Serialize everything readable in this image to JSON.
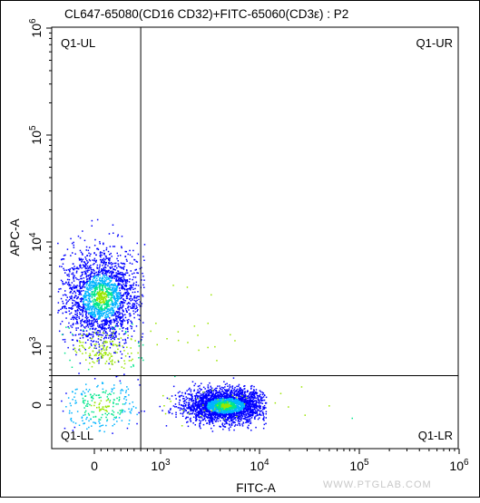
{
  "chart_data": {
    "type": "scatter",
    "title": "CL647-65080(CD16 CD32)+FITC-65060(CD3ε) : P2",
    "xlabel": "FITC-A",
    "ylabel": "APC-A",
    "x_scale": "biexponential",
    "y_scale": "biexponential",
    "xlim": [
      -600,
      1000000
    ],
    "ylim": [
      -600,
      1000000
    ],
    "x_ticks": [
      {
        "value": 0,
        "label": "0"
      },
      {
        "value": 1000,
        "label": "10",
        "sup": "3"
      },
      {
        "value": 10000,
        "label": "10",
        "sup": "4"
      },
      {
        "value": 100000,
        "label": "10",
        "sup": "5"
      },
      {
        "value": 1000000,
        "label": "10",
        "sup": "6"
      }
    ],
    "y_ticks": [
      {
        "value": 0,
        "label": "0"
      },
      {
        "value": 1000,
        "label": "10",
        "sup": "3"
      },
      {
        "value": 10000,
        "label": "10",
        "sup": "4"
      },
      {
        "value": 100000,
        "label": "10",
        "sup": "5"
      },
      {
        "value": 1000000,
        "label": "10",
        "sup": "6"
      }
    ],
    "quadrant_gate": {
      "x": 700,
      "y": 500
    },
    "quadrants": [
      {
        "name": "Q1-UL",
        "position": "top-left"
      },
      {
        "name": "Q1-UR",
        "position": "top-right"
      },
      {
        "name": "Q1-LL",
        "position": "bottom-left"
      },
      {
        "name": "Q1-LR",
        "position": "bottom-right"
      }
    ],
    "populations": [
      {
        "quadrant": "Q1-UL",
        "x_center": 100,
        "y_center": 3000,
        "events_approx": 2200
      },
      {
        "quadrant": "Q1-LR",
        "x_center": 4500,
        "y_center": 0,
        "events_approx": 2800
      },
      {
        "quadrant": "Q1-LL",
        "x_center": 100,
        "y_center": 0,
        "events_approx": 250
      }
    ],
    "colors": [
      "#0000ff",
      "#00b4ff",
      "#00e68c",
      "#9be600"
    ]
  },
  "watermark": "WWW.PTGLAB.COM"
}
